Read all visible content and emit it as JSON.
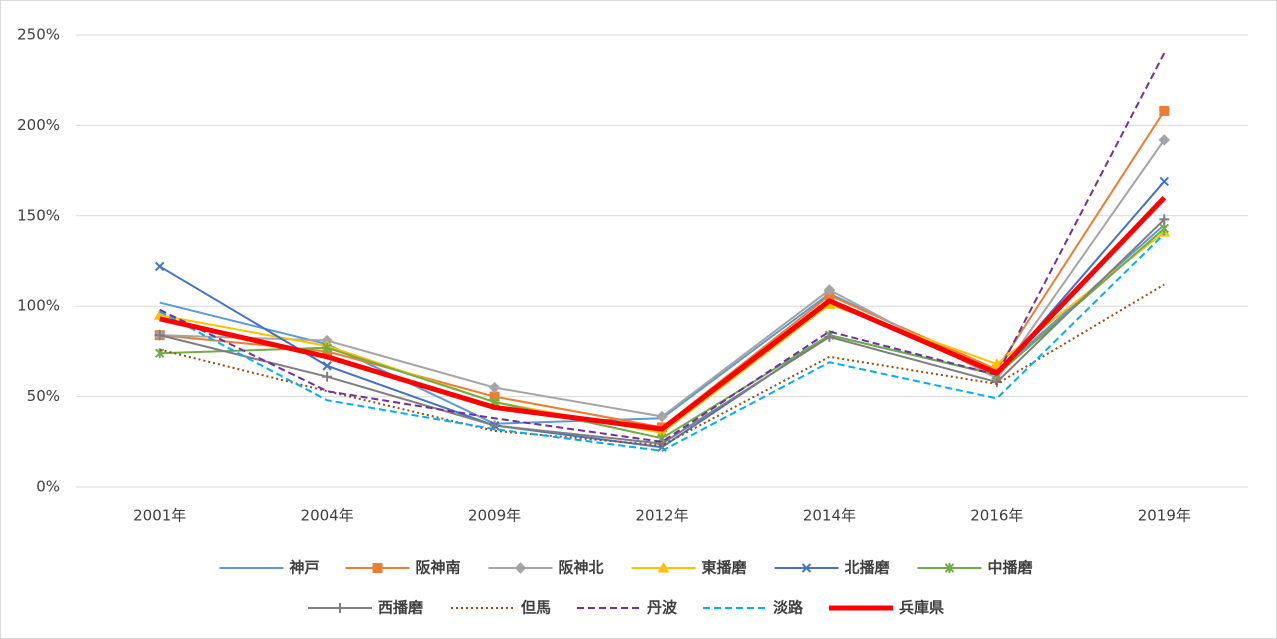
{
  "chart_data": {
    "type": "line",
    "categories": [
      "2001年",
      "2004年",
      "2009年",
      "2012年",
      "2014年",
      "2016年",
      "2019年"
    ],
    "ylim": [
      0,
      250
    ],
    "yticks": [
      {
        "value": 0,
        "label": "0%"
      },
      {
        "value": 50,
        "label": "50%"
      },
      {
        "value": 100,
        "label": "100%"
      },
      {
        "value": 150,
        "label": "150%"
      },
      {
        "value": 200,
        "label": "200%"
      },
      {
        "value": 250,
        "label": "250%"
      }
    ],
    "grid": true,
    "legend": "bottom",
    "series": [
      {
        "name": "神戸",
        "color": "#5b9bd5",
        "marker": "none",
        "dash": "solid",
        "values": [
          102,
          79,
          35,
          38,
          107,
          63,
          145
        ]
      },
      {
        "name": "阪神南",
        "color": "#ed7d31",
        "marker": "square",
        "dash": "solid",
        "values": [
          84,
          75,
          50,
          33,
          106,
          65,
          208
        ]
      },
      {
        "name": "阪神北",
        "color": "#a5a5a5",
        "marker": "diamond",
        "dash": "solid",
        "values": [
          84,
          81,
          55,
          39,
          109,
          60,
          192
        ]
      },
      {
        "name": "東播磨",
        "color": "#ffc000",
        "marker": "triangle",
        "dash": "solid",
        "values": [
          95,
          78,
          47,
          30,
          101,
          68,
          141
        ]
      },
      {
        "name": "北播磨",
        "color": "#4472c4",
        "marker": "x",
        "dash": "solid",
        "values": [
          122,
          67,
          34,
          22,
          84,
          62,
          169
        ]
      },
      {
        "name": "中播磨",
        "color": "#70ad47",
        "marker": "star",
        "dash": "solid",
        "values": [
          74,
          77,
          47,
          27,
          84,
          62,
          143
        ]
      },
      {
        "name": "西播磨",
        "color": "#7f7f7f",
        "marker": "plus",
        "dash": "solid",
        "values": [
          84,
          61,
          34,
          24,
          83,
          58,
          148
        ]
      },
      {
        "name": "但馬",
        "color": "#9e480e",
        "marker": "none",
        "dash": "dotted",
        "values": [
          76,
          53,
          31,
          23,
          72,
          57,
          112
        ]
      },
      {
        "name": "丹波",
        "color": "#7030a0",
        "marker": "none",
        "dash": "dashed",
        "values": [
          98,
          53,
          38,
          25,
          86,
          62,
          240
        ]
      },
      {
        "name": "淡路",
        "color": "#00b0f0",
        "marker": "none",
        "dash": "dashed",
        "values": [
          97,
          48,
          32,
          20,
          69,
          49,
          140
        ]
      },
      {
        "name": "兵庫県",
        "color": "#ff0000",
        "marker": "none",
        "dash": "bold",
        "values": [
          93,
          72,
          44,
          32,
          103,
          63,
          160
        ]
      }
    ]
  }
}
